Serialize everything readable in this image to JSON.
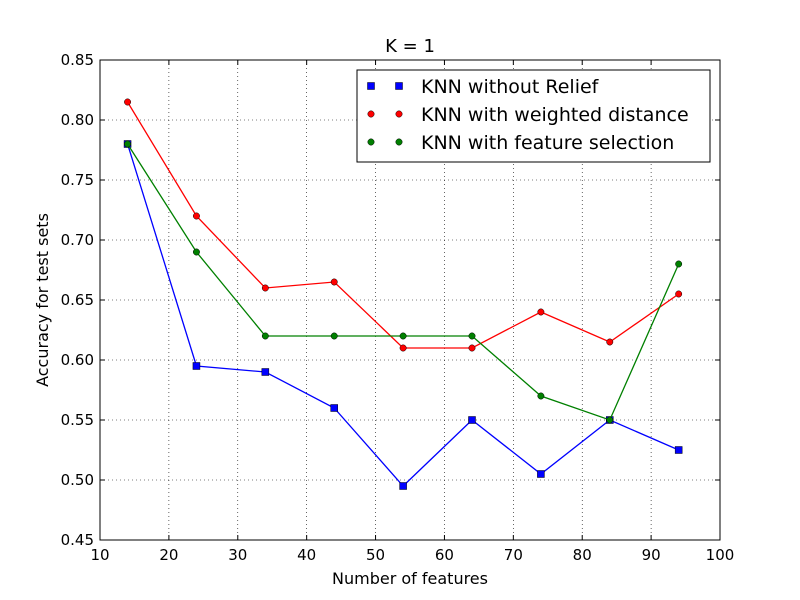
{
  "chart_data": {
    "type": "line",
    "title": "K = 1",
    "xlabel": "Number of features",
    "ylabel": "Accuracy for test sets",
    "xlim": [
      10,
      100
    ],
    "ylim": [
      0.45,
      0.85
    ],
    "xticks": [
      "10",
      "20",
      "30",
      "40",
      "50",
      "60",
      "70",
      "80",
      "90",
      "100"
    ],
    "yticks": [
      "0.45",
      "0.50",
      "0.55",
      "0.60",
      "0.65",
      "0.70",
      "0.75",
      "0.80",
      "0.85"
    ],
    "grid": true,
    "legend_position": "top-right",
    "x": [
      14,
      24,
      34,
      44,
      54,
      64,
      74,
      84,
      94
    ],
    "series": [
      {
        "name": "KNN without Relief",
        "color": "#0000ff",
        "marker": "square",
        "values": [
          0.78,
          0.595,
          0.59,
          0.56,
          0.495,
          0.55,
          0.505,
          0.55,
          0.525
        ]
      },
      {
        "name": "KNN with weighted distance",
        "color": "#ff0000",
        "marker": "circle",
        "values": [
          0.815,
          0.72,
          0.66,
          0.665,
          0.61,
          0.61,
          0.64,
          0.615,
          0.655
        ]
      },
      {
        "name": "KNN with feature selection",
        "color": "#008000",
        "marker": "circle",
        "values": [
          0.78,
          0.69,
          0.62,
          0.62,
          0.62,
          0.62,
          0.57,
          0.55,
          0.68
        ]
      }
    ]
  }
}
